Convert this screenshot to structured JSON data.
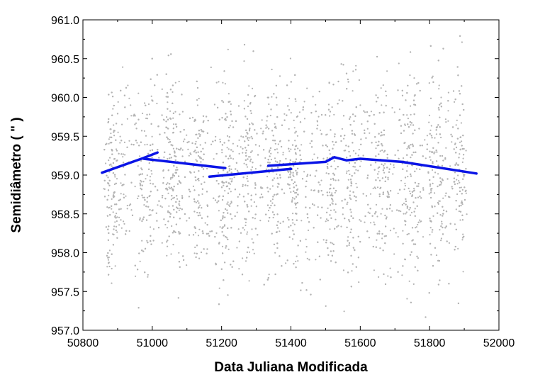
{
  "chart_data": {
    "type": "scatter",
    "title": "",
    "xlabel": "Data Juliana Modificada",
    "ylabel": "Semidiâmetro ( \" )",
    "xlim": [
      50800,
      52000
    ],
    "ylim": [
      957.0,
      961.0
    ],
    "xticks": [
      50800,
      51000,
      51200,
      51400,
      51600,
      51800,
      52000
    ],
    "yticks": [
      957.0,
      957.5,
      958.0,
      958.5,
      959.0,
      959.5,
      960.0,
      960.5,
      961.0
    ],
    "xtick_labels": [
      "50800",
      "51000",
      "51200",
      "51400",
      "51600",
      "51800",
      "52000"
    ],
    "ytick_labels": [
      "957.0",
      "957.5",
      "958.0",
      "958.5",
      "959.0",
      "959.5",
      "960.0",
      "960.5",
      "961.0"
    ],
    "grid": false,
    "legend": "none",
    "colors": {
      "observations": "#b4b4b4",
      "fit": "#0a14e6",
      "axis": "#000000"
    },
    "observation_distribution": {
      "approx_count": 4500,
      "center": 959.0,
      "spread_sd": 0.62,
      "x_range": [
        50860,
        51910
      ],
      "dense_bands": [
        [
          50870,
          50900
        ],
        [
          50960,
          51000
        ],
        [
          51040,
          51080
        ],
        [
          51120,
          51150
        ],
        [
          51200,
          51230
        ],
        [
          51260,
          51300
        ],
        [
          51330,
          51370
        ],
        [
          51390,
          51420
        ],
        [
          51500,
          51530
        ],
        [
          51560,
          51590
        ],
        [
          51640,
          51680
        ],
        [
          51720,
          51760
        ],
        [
          51800,
          51840
        ],
        [
          51870,
          51900
        ]
      ]
    },
    "series": [
      {
        "type": "line",
        "segments": [
          [
            [
              50855,
              959.03
            ],
            [
              50975,
              959.22
            ],
            [
              51015,
              959.29
            ]
          ],
          [
            [
              50975,
              959.21
            ],
            [
              51210,
              959.09
            ]
          ],
          [
            [
              51165,
              958.98
            ],
            [
              51355,
              959.06
            ],
            [
              51400,
              959.08
            ]
          ],
          [
            [
              51335,
              959.12
            ],
            [
              51500,
              959.17
            ],
            [
              51525,
              959.23
            ],
            [
              51560,
              959.19
            ],
            [
              51600,
              959.21
            ],
            [
              51720,
              959.17
            ],
            [
              51935,
              959.02
            ]
          ]
        ]
      }
    ]
  }
}
